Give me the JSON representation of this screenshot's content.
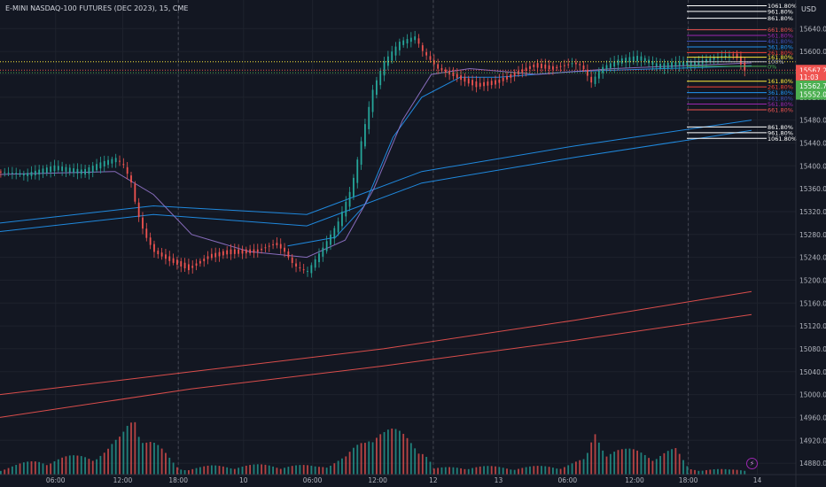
{
  "header": {
    "title": "E-MINI NASDAQ-100 FUTURES (DEC 2023), 15, CME",
    "currency": "USD"
  },
  "colors": {
    "background": "#131722",
    "grid": "#1e222d",
    "up": "#26a69a",
    "down": "#ef5350",
    "ma_blue": "#2196f3",
    "ma_purple": "#9575cd",
    "ma_red": "#ef5350",
    "text": "#b2b5be"
  },
  "icons": {
    "alert": "lightning-icon"
  },
  "chart_data": {
    "type": "candlestick",
    "interval": "15",
    "exchange": "CME",
    "y_range": [
      14860,
      15690
    ],
    "x_range": [
      0,
      392
    ],
    "y_ticks": [
      14880,
      14920,
      14960,
      15000,
      15040,
      15080,
      15120,
      15160,
      15200,
      15240,
      15280,
      15320,
      15360,
      15400,
      15440,
      15480,
      15520,
      15560,
      15600,
      15640
    ],
    "x_ticks": [
      {
        "label": "06:00",
        "x": 29
      },
      {
        "label": "12:00",
        "x": 64
      },
      {
        "label": "18:00",
        "x": 93
      },
      {
        "label": "10",
        "x": 127
      },
      {
        "label": "06:00",
        "x": 163
      },
      {
        "label": "12:00",
        "x": 197
      },
      {
        "label": "12",
        "x": 226
      },
      {
        "label": "13",
        "x": 260
      },
      {
        "label": "06:00",
        "x": 296
      },
      {
        "label": "12:00",
        "x": 331
      },
      {
        "label": "18:00",
        "x": 359
      },
      {
        "label": "14",
        "x": 395
      }
    ],
    "session_breaks": [
      93,
      226,
      359
    ],
    "price_path": [
      [
        0,
        15390
      ],
      [
        15,
        15385
      ],
      [
        30,
        15398
      ],
      [
        45,
        15390
      ],
      [
        55,
        15405
      ],
      [
        62,
        15412
      ],
      [
        66,
        15400
      ],
      [
        70,
        15370
      ],
      [
        73,
        15320
      ],
      [
        77,
        15280
      ],
      [
        82,
        15250
      ],
      [
        90,
        15235
      ],
      [
        100,
        15220
      ],
      [
        110,
        15240
      ],
      [
        120,
        15248
      ],
      [
        135,
        15250
      ],
      [
        145,
        15265
      ],
      [
        150,
        15250
      ],
      [
        155,
        15225
      ],
      [
        162,
        15215
      ],
      [
        170,
        15255
      ],
      [
        178,
        15300
      ],
      [
        185,
        15360
      ],
      [
        190,
        15440
      ],
      [
        196,
        15530
      ],
      [
        202,
        15580
      ],
      [
        210,
        15615
      ],
      [
        218,
        15625
      ],
      [
        222,
        15600
      ],
      [
        230,
        15570
      ],
      [
        240,
        15555
      ],
      [
        250,
        15540
      ],
      [
        260,
        15545
      ],
      [
        270,
        15560
      ],
      [
        280,
        15575
      ],
      [
        290,
        15570
      ],
      [
        300,
        15580
      ],
      [
        305,
        15575
      ],
      [
        310,
        15545
      ],
      [
        315,
        15570
      ],
      [
        325,
        15585
      ],
      [
        335,
        15590
      ],
      [
        345,
        15575
      ],
      [
        355,
        15580
      ],
      [
        365,
        15580
      ],
      [
        375,
        15590
      ],
      [
        385,
        15595
      ],
      [
        390,
        15567.25
      ]
    ],
    "volume_path": [
      [
        0,
        0.05
      ],
      [
        20,
        0.12
      ],
      [
        40,
        0.15
      ],
      [
        55,
        0.2
      ],
      [
        63,
        0.3
      ],
      [
        70,
        0.55
      ],
      [
        75,
        0.35
      ],
      [
        85,
        0.18
      ],
      [
        93,
        0.05
      ],
      [
        110,
        0.07
      ],
      [
        140,
        0.08
      ],
      [
        165,
        0.07
      ],
      [
        180,
        0.14
      ],
      [
        190,
        0.3
      ],
      [
        195,
        0.45
      ],
      [
        200,
        0.38
      ],
      [
        210,
        0.32
      ],
      [
        220,
        0.25
      ],
      [
        226,
        0.05
      ],
      [
        245,
        0.07
      ],
      [
        265,
        0.06
      ],
      [
        290,
        0.07
      ],
      [
        305,
        0.12
      ],
      [
        310,
        0.35
      ],
      [
        315,
        0.25
      ],
      [
        325,
        0.2
      ],
      [
        340,
        0.18
      ],
      [
        352,
        0.2
      ],
      [
        359,
        0.05
      ],
      [
        380,
        0.04
      ],
      [
        392,
        0.05
      ]
    ],
    "moving_averages": [
      {
        "color": "#2196f3",
        "points": [
          [
            0,
            15300
          ],
          [
            80,
            15330
          ],
          [
            160,
            15315
          ],
          [
            220,
            15390
          ],
          [
            300,
            15435
          ],
          [
            392,
            15480
          ]
        ]
      },
      {
        "color": "#2196f3",
        "points": [
          [
            0,
            15285
          ],
          [
            80,
            15315
          ],
          [
            160,
            15295
          ],
          [
            220,
            15370
          ],
          [
            300,
            15415
          ],
          [
            392,
            15462
          ]
        ]
      },
      {
        "color": "#2196f3",
        "points": [
          [
            150,
            15260
          ],
          [
            175,
            15275
          ],
          [
            190,
            15330
          ],
          [
            205,
            15450
          ],
          [
            220,
            15520
          ],
          [
            240,
            15555
          ],
          [
            260,
            15555
          ],
          [
            300,
            15565
          ],
          [
            392,
            15575
          ]
        ]
      },
      {
        "color": "#9575cd",
        "points": [
          [
            0,
            15385
          ],
          [
            60,
            15390
          ],
          [
            80,
            15350
          ],
          [
            100,
            15280
          ],
          [
            130,
            15250
          ],
          [
            160,
            15240
          ],
          [
            180,
            15270
          ],
          [
            195,
            15360
          ],
          [
            210,
            15480
          ],
          [
            225,
            15560
          ],
          [
            245,
            15570
          ],
          [
            280,
            15560
          ],
          [
            320,
            15570
          ],
          [
            392,
            15580
          ]
        ]
      },
      {
        "color": "#ef5350",
        "points": [
          [
            0,
            15000
          ],
          [
            100,
            15040
          ],
          [
            200,
            15080
          ],
          [
            300,
            15130
          ],
          [
            392,
            15180
          ]
        ]
      },
      {
        "color": "#ef5350",
        "points": [
          [
            0,
            14960
          ],
          [
            100,
            15010
          ],
          [
            200,
            15050
          ],
          [
            300,
            15095
          ],
          [
            392,
            15140
          ]
        ]
      }
    ],
    "fib_levels": [
      {
        "label": "1061.80%",
        "color": "#ffffff",
        "price": 15680
      },
      {
        "label": "961.80%",
        "color": "#ffffff",
        "price": 15670
      },
      {
        "label": "861.80%",
        "color": "#ffffff",
        "price": 15658
      },
      {
        "label": "661.80%",
        "color": "#ef5350",
        "price": 15638
      },
      {
        "label": "561.80%",
        "color": "#9c27b0",
        "price": 15628
      },
      {
        "label": "461.80%",
        "color": "#3f51b5",
        "price": 15618
      },
      {
        "label": "361.80%",
        "color": "#2196f3",
        "price": 15608
      },
      {
        "label": "261.80%",
        "color": "#f44336",
        "price": 15598
      },
      {
        "label": "161.80%",
        "color": "#ffeb3b",
        "price": 15590
      },
      {
        "label": "100%",
        "color": "#b2b5be",
        "price": 15582
      },
      {
        "label": "0%",
        "color": "#4caf50",
        "price": 15574
      },
      {
        "label": "161.80%",
        "color": "#ffeb3b",
        "price": 15548
      },
      {
        "label": "261.80%",
        "color": "#f44336",
        "price": 15538
      },
      {
        "label": "361.80%",
        "color": "#2196f3",
        "price": 15528
      },
      {
        "label": "461.80%",
        "color": "#3f51b5",
        "price": 15518
      },
      {
        "label": "561.80%",
        "color": "#9c27b0",
        "price": 15508
      },
      {
        "label": "661.80%",
        "color": "#ef5350",
        "price": 15498
      },
      {
        "label": "861.80%",
        "color": "#ffffff",
        "price": 15468
      },
      {
        "label": "961.80%",
        "color": "#ffffff",
        "price": 15458
      },
      {
        "label": "1061.80%",
        "color": "#ffffff",
        "price": 15448
      }
    ],
    "price_labels": [
      {
        "text": "15567.25",
        "bg": "#ef5350",
        "price": 15567.25
      },
      {
        "text": "11:03",
        "bg": "#ef5350",
        "price": 15555
      },
      {
        "text": "15562.75",
        "bg": "#4caf50",
        "price": 15540
      },
      {
        "text": "15552.00",
        "bg": "#4caf50",
        "price": 15525
      }
    ],
    "dotted_levels": [
      {
        "color": "#ffeb3b",
        "price": 15582
      },
      {
        "color": "#ef5350",
        "price": 15567.25
      },
      {
        "color": "#4caf50",
        "price": 15562.75
      }
    ]
  }
}
